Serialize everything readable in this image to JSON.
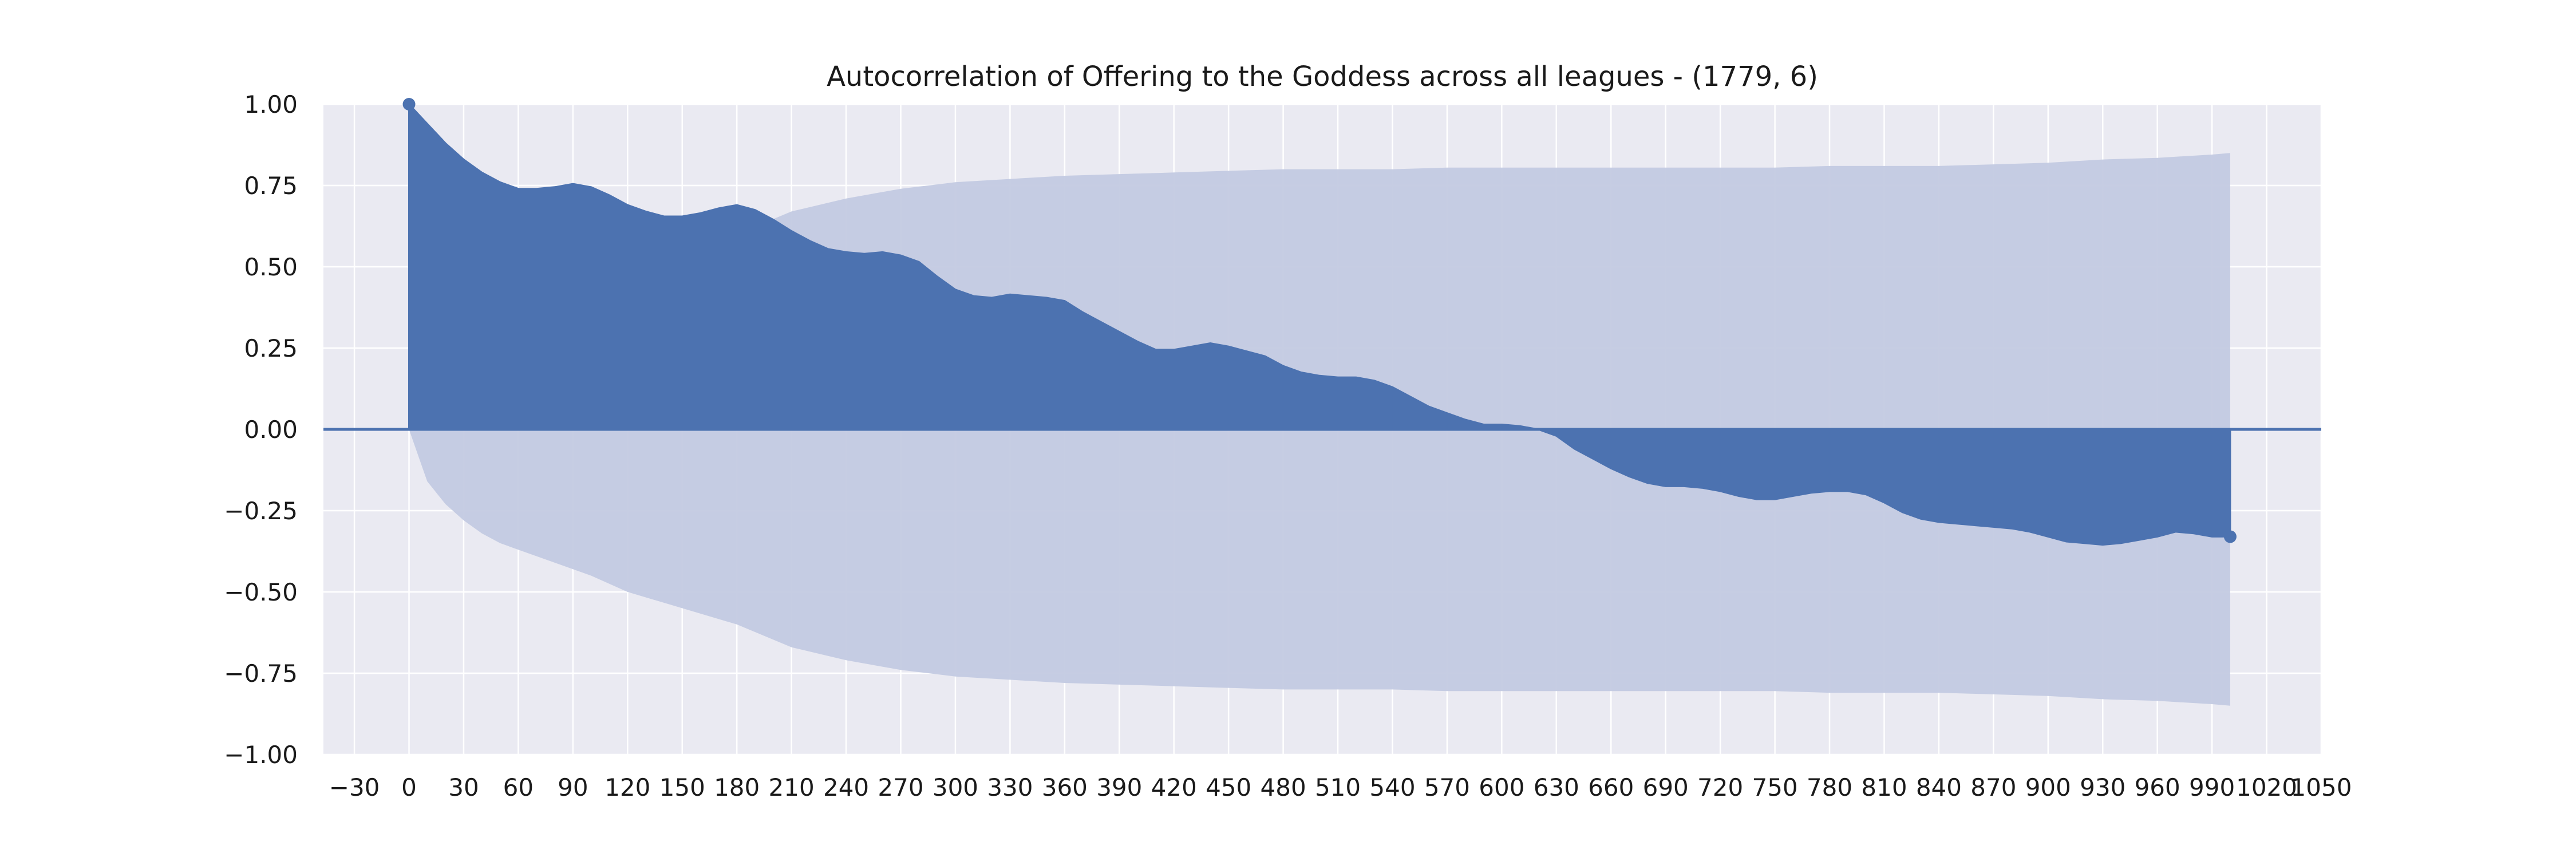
{
  "chart_data": {
    "type": "area",
    "title": "Autocorrelation of Offering to the Goddess across all leagues - (1779, 6)",
    "xlabel": "",
    "ylabel": "",
    "xlim": [
      -47,
      1050
    ],
    "ylim": [
      -1.0,
      1.0
    ],
    "x_ticks": [
      -30,
      0,
      30,
      60,
      90,
      120,
      150,
      180,
      210,
      240,
      270,
      300,
      330,
      360,
      390,
      420,
      450,
      480,
      510,
      540,
      570,
      600,
      630,
      660,
      690,
      720,
      750,
      780,
      810,
      840,
      870,
      900,
      930,
      960,
      990,
      1020,
      1050
    ],
    "x_tick_labels": [
      "−30",
      "0",
      "30",
      "60",
      "90",
      "120",
      "150",
      "180",
      "210",
      "240",
      "270",
      "300",
      "330",
      "360",
      "390",
      "420",
      "450",
      "480",
      "510",
      "540",
      "570",
      "600",
      "630",
      "660",
      "690",
      "720",
      "750",
      "780",
      "810",
      "840",
      "870",
      "900",
      "930",
      "960",
      "990",
      "1020",
      "1050"
    ],
    "y_ticks": [
      -1.0,
      -0.75,
      -0.5,
      -0.25,
      0.0,
      0.25,
      0.5,
      0.75,
      1.0
    ],
    "y_tick_labels": [
      "−1.00",
      "−0.75",
      "−0.50",
      "−0.25",
      "0.00",
      "0.25",
      "0.50",
      "0.75",
      "1.00"
    ],
    "grid": true,
    "colors": {
      "acf": "#4c72b0",
      "confidence": "#c3cae2",
      "background": "#eaeaf2",
      "grid": "#ffffff"
    },
    "series": [
      {
        "kind": "autocorrelation",
        "x": [
          0,
          10,
          20,
          30,
          40,
          50,
          60,
          70,
          80,
          90,
          100,
          110,
          120,
          130,
          140,
          150,
          160,
          170,
          180,
          190,
          200,
          210,
          220,
          230,
          240,
          250,
          260,
          270,
          280,
          290,
          300,
          310,
          320,
          330,
          340,
          350,
          360,
          370,
          380,
          390,
          400,
          410,
          420,
          430,
          440,
          450,
          460,
          470,
          480,
          490,
          500,
          510,
          520,
          530,
          540,
          550,
          560,
          570,
          580,
          590,
          600,
          610,
          620,
          630,
          640,
          650,
          660,
          670,
          680,
          690,
          700,
          710,
          720,
          730,
          740,
          750,
          760,
          770,
          780,
          790,
          800,
          810,
          820,
          830,
          840,
          850,
          860,
          870,
          880,
          890,
          900,
          910,
          920,
          930,
          940,
          950,
          960,
          970,
          980,
          990,
          1000
        ],
        "y": [
          1.0,
          0.94,
          0.88,
          0.83,
          0.79,
          0.76,
          0.74,
          0.74,
          0.745,
          0.755,
          0.745,
          0.72,
          0.69,
          0.67,
          0.655,
          0.655,
          0.665,
          0.68,
          0.69,
          0.675,
          0.645,
          0.61,
          0.58,
          0.555,
          0.545,
          0.54,
          0.545,
          0.535,
          0.515,
          0.47,
          0.43,
          0.41,
          0.405,
          0.415,
          0.41,
          0.405,
          0.395,
          0.36,
          0.33,
          0.3,
          0.27,
          0.245,
          0.245,
          0.255,
          0.265,
          0.255,
          0.24,
          0.225,
          0.195,
          0.175,
          0.165,
          0.16,
          0.16,
          0.15,
          0.13,
          0.1,
          0.07,
          0.05,
          0.03,
          0.015,
          0.015,
          0.01,
          0.0,
          -0.02,
          -0.06,
          -0.09,
          -0.12,
          -0.145,
          -0.165,
          -0.175,
          -0.175,
          -0.18,
          -0.19,
          -0.205,
          -0.215,
          -0.215,
          -0.205,
          -0.195,
          -0.19,
          -0.19,
          -0.2,
          -0.225,
          -0.255,
          -0.275,
          -0.285,
          -0.29,
          -0.295,
          -0.3,
          -0.305,
          -0.315,
          -0.33,
          -0.345,
          -0.35,
          -0.355,
          -0.35,
          -0.34,
          -0.33,
          -0.315,
          -0.32,
          -0.33,
          -0.33
        ]
      },
      {
        "kind": "confidence_band",
        "x": [
          0,
          10,
          20,
          30,
          40,
          50,
          60,
          80,
          100,
          120,
          150,
          180,
          210,
          240,
          270,
          300,
          330,
          360,
          390,
          420,
          450,
          480,
          510,
          540,
          570,
          600,
          630,
          660,
          690,
          720,
          750,
          780,
          810,
          840,
          870,
          900,
          930,
          960,
          990,
          1000
        ],
        "upper": [
          0.0,
          0.16,
          0.23,
          0.28,
          0.32,
          0.35,
          0.37,
          0.41,
          0.45,
          0.5,
          0.55,
          0.6,
          0.67,
          0.71,
          0.74,
          0.76,
          0.77,
          0.78,
          0.785,
          0.79,
          0.795,
          0.8,
          0.8,
          0.8,
          0.805,
          0.805,
          0.805,
          0.805,
          0.805,
          0.805,
          0.805,
          0.81,
          0.81,
          0.81,
          0.815,
          0.82,
          0.83,
          0.835,
          0.845,
          0.85
        ],
        "lower": [
          0.0,
          -0.16,
          -0.23,
          -0.28,
          -0.32,
          -0.35,
          -0.37,
          -0.41,
          -0.45,
          -0.5,
          -0.55,
          -0.6,
          -0.67,
          -0.71,
          -0.74,
          -0.76,
          -0.77,
          -0.78,
          -0.785,
          -0.79,
          -0.795,
          -0.8,
          -0.8,
          -0.8,
          -0.805,
          -0.805,
          -0.805,
          -0.805,
          -0.805,
          -0.805,
          -0.805,
          -0.81,
          -0.81,
          -0.81,
          -0.815,
          -0.82,
          -0.83,
          -0.835,
          -0.845,
          -0.85
        ]
      }
    ]
  }
}
